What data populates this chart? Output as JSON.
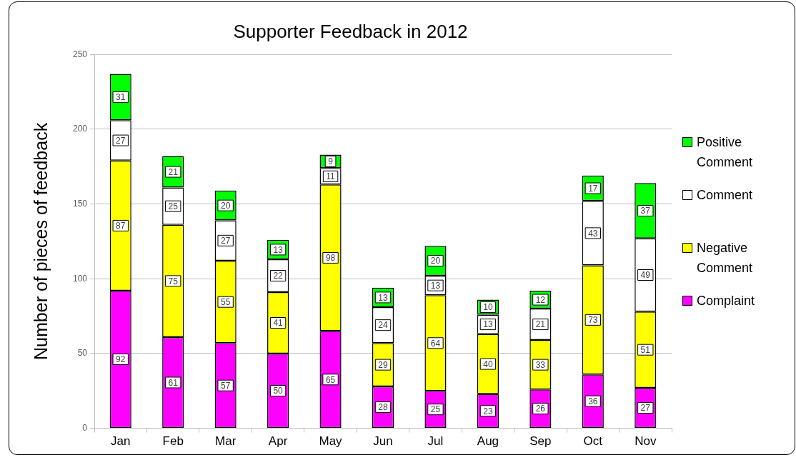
{
  "chart_data": {
    "type": "bar",
    "title": "Supporter Feedback in 2012",
    "ylabel": "Number of pieces of feedback",
    "categories": [
      "Jan",
      "Feb",
      "Mar",
      "Apr",
      "May",
      "Jun",
      "Jul",
      "Aug",
      "Sep",
      "Oct",
      "Nov"
    ],
    "stacked": true,
    "series": [
      {
        "name": "Complaint",
        "color": "#ff00ff",
        "values": [
          92,
          61,
          57,
          50,
          65,
          28,
          25,
          23,
          26,
          36,
          27
        ]
      },
      {
        "name": "Negative Comment",
        "color": "#ffff00",
        "values": [
          87,
          75,
          55,
          41,
          98,
          29,
          64,
          40,
          33,
          73,
          51
        ]
      },
      {
        "name": "Comment",
        "color": "#ffffff",
        "values": [
          27,
          25,
          27,
          22,
          11,
          24,
          13,
          13,
          21,
          43,
          49
        ]
      },
      {
        "name": "Positive Comment",
        "color": "#00ff00",
        "values": [
          31,
          21,
          20,
          13,
          9,
          13,
          20,
          10,
          12,
          17,
          37
        ]
      }
    ],
    "ylim": [
      0,
      250
    ],
    "yticks": [
      0,
      50,
      100,
      150,
      200,
      250
    ],
    "grid": "y",
    "legend": "right",
    "data_labels": true
  }
}
